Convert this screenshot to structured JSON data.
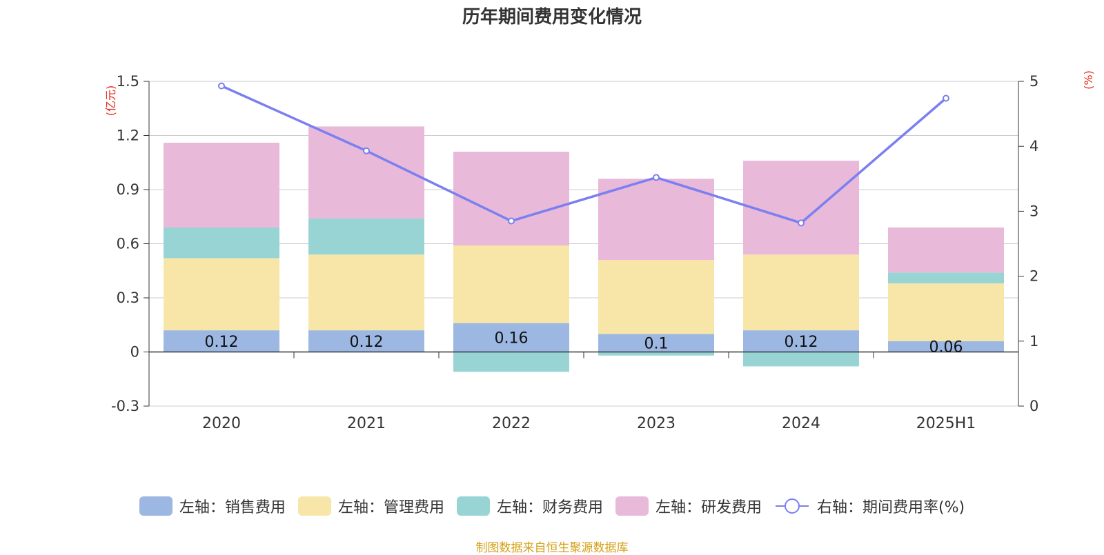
{
  "title": "历年期间费用变化情况",
  "source": "制图数据来自恒生聚源数据库",
  "chart_data": {
    "type": "bar",
    "stacked": true,
    "title": "历年期间费用变化情况",
    "categories": [
      "2020",
      "2021",
      "2022",
      "2023",
      "2024",
      "2025H1"
    ],
    "left_axis": {
      "unit": "(亿元)",
      "ylim": [
        -0.3,
        1.5
      ],
      "ticks": [
        -0.3,
        0,
        0.3,
        0.6,
        0.9,
        1.2,
        1.5
      ],
      "tick_labels": [
        "-0.3",
        "0",
        "0.3",
        "0.6",
        "0.9",
        "1.2",
        "1.5"
      ]
    },
    "right_axis": {
      "unit": "(%)",
      "ylim": [
        0,
        5
      ],
      "ticks": [
        0,
        1,
        2,
        3,
        4,
        5
      ],
      "tick_labels": [
        "0",
        "1",
        "2",
        "3",
        "4",
        "5"
      ]
    },
    "series": [
      {
        "name": "左轴：销售费用",
        "type": "bar",
        "axis": "left",
        "color": "#9bb7e2",
        "values": [
          0.12,
          0.12,
          0.16,
          0.1,
          0.12,
          0.06
        ],
        "labels": [
          "0.12",
          "0.12",
          "0.16",
          "0.1",
          "0.12",
          "0.06"
        ]
      },
      {
        "name": "左轴：管理费用",
        "type": "bar",
        "axis": "left",
        "color": "#f7e6a8",
        "values": [
          0.4,
          0.42,
          0.43,
          0.41,
          0.42,
          0.32
        ]
      },
      {
        "name": "左轴：财务费用",
        "type": "bar",
        "axis": "left",
        "color": "#98d4d4",
        "values": [
          0.17,
          0.2,
          -0.11,
          -0.02,
          -0.08,
          0.06
        ]
      },
      {
        "name": "左轴：研发费用",
        "type": "bar",
        "axis": "left",
        "color": "#e8b9d9",
        "values": [
          0.47,
          0.51,
          0.52,
          0.45,
          0.52,
          0.25
        ]
      },
      {
        "name": "右轴：期间费用率(%)",
        "type": "line",
        "axis": "right",
        "color": "#7b7ff0",
        "values": [
          4.93,
          3.93,
          2.85,
          3.52,
          2.82,
          4.74
        ]
      }
    ],
    "grid": true,
    "legend_position": "bottom"
  }
}
